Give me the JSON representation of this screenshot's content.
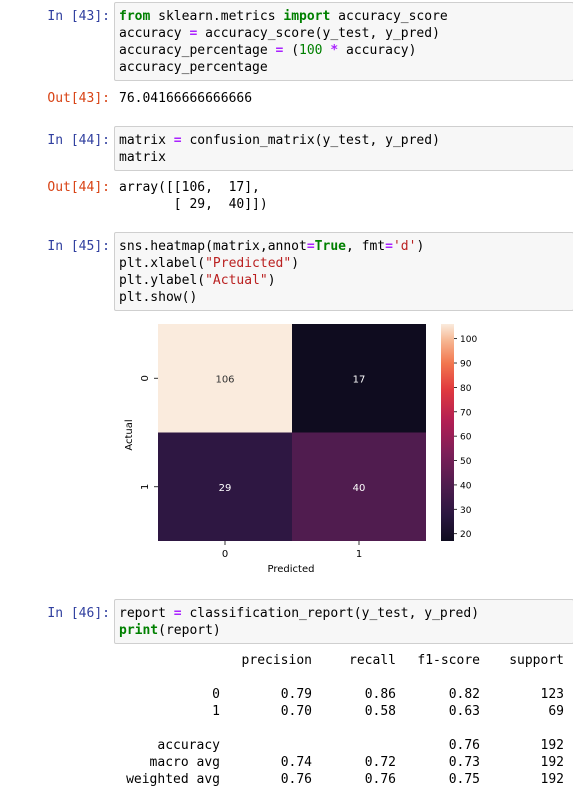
{
  "cells": {
    "c43": {
      "prompt_in": "In [43]:",
      "prompt_out": "Out[43]:",
      "output": "76.04166666666666"
    },
    "c44": {
      "prompt_in": "In [44]:",
      "prompt_out": "Out[44]:",
      "output_line1": "array([[106,  17],",
      "output_line2": "       [ 29,  40]])"
    },
    "c45": {
      "prompt_in": "In [45]:"
    },
    "c46": {
      "prompt_in": "In [46]:"
    }
  },
  "code": {
    "c43": [
      {
        "t": "from",
        "c": "kw"
      },
      {
        "t": " sklearn.metrics "
      },
      {
        "t": "import",
        "c": "kw"
      },
      {
        "t": " accuracy_score"
      },
      {
        "br": true
      },
      {
        "t": "accuracy "
      },
      {
        "t": "=",
        "c": "op"
      },
      {
        "t": " accuracy_score(y_test, y_pred)"
      },
      {
        "br": true
      },
      {
        "t": "accuracy_percentage "
      },
      {
        "t": "=",
        "c": "op"
      },
      {
        "t": " ("
      },
      {
        "t": "100",
        "c": "num"
      },
      {
        "t": " "
      },
      {
        "t": "*",
        "c": "op"
      },
      {
        "t": " accuracy)"
      },
      {
        "br": true
      },
      {
        "t": "accuracy_percentage"
      }
    ],
    "c44": [
      {
        "t": "matrix "
      },
      {
        "t": "=",
        "c": "op"
      },
      {
        "t": " confusion_matrix(y_test, y_pred)"
      },
      {
        "br": true
      },
      {
        "t": "matrix"
      }
    ],
    "c45": [
      {
        "t": "sns.heatmap(matrix,annot"
      },
      {
        "t": "=",
        "c": "op"
      },
      {
        "t": "True",
        "c": "kw"
      },
      {
        "t": ", fmt"
      },
      {
        "t": "=",
        "c": "op"
      },
      {
        "t": "'d'",
        "c": "str"
      },
      {
        "t": ")"
      },
      {
        "br": true
      },
      {
        "t": "plt.xlabel("
      },
      {
        "t": "\"Predicted\"",
        "c": "str"
      },
      {
        "t": ")"
      },
      {
        "br": true
      },
      {
        "t": "plt.ylabel("
      },
      {
        "t": "\"Actual\"",
        "c": "str"
      },
      {
        "t": ")"
      },
      {
        "br": true
      },
      {
        "t": "plt.show()"
      }
    ],
    "c46": [
      {
        "t": "report "
      },
      {
        "t": "=",
        "c": "op"
      },
      {
        "t": " classification_report(y_test, y_pred)"
      },
      {
        "br": true
      },
      {
        "t": "print",
        "c": "kw"
      },
      {
        "t": "(report)"
      }
    ]
  },
  "chart_data": {
    "type": "heatmap",
    "xlabel": "Predicted",
    "ylabel": "Actual",
    "x_categories": [
      "0",
      "1"
    ],
    "y_categories": [
      "0",
      "1"
    ],
    "values": [
      [
        106,
        17
      ],
      [
        29,
        40
      ]
    ],
    "colorbar": {
      "min": 17,
      "max": 106,
      "ticks": [
        20,
        30,
        40,
        50,
        60,
        70,
        80,
        90,
        100
      ]
    },
    "colormap": "rocket"
  },
  "report": {
    "header": [
      "precision",
      "recall",
      "f1-score",
      "support"
    ],
    "rows": [
      [
        "0",
        "0.79",
        "0.86",
        "0.82",
        "123"
      ],
      [
        "1",
        "0.70",
        "0.58",
        "0.63",
        "69"
      ],
      [
        "accuracy",
        "",
        "",
        "0.76",
        "192"
      ],
      [
        "macro avg",
        "0.74",
        "0.72",
        "0.73",
        "192"
      ],
      [
        "weighted avg",
        "0.76",
        "0.76",
        "0.75",
        "192"
      ]
    ]
  }
}
